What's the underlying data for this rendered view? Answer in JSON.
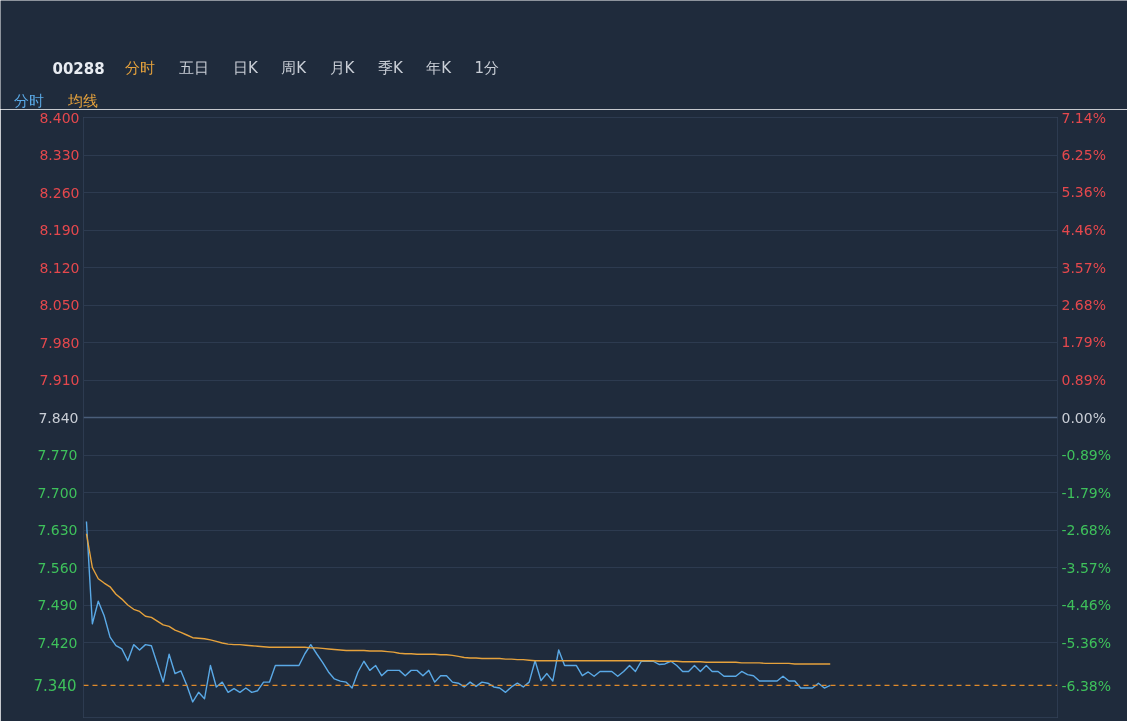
{
  "chart_data": {
    "type": "line",
    "title": "00288",
    "annotations": [
      "分时",
      "五日",
      "日K",
      "周K",
      "月K",
      "季K",
      "年K",
      "1分"
    ],
    "grid": "y",
    "tick_labels": "y",
    "categories": [
      null,
      null,
      null,
      null,
      null,
      null,
      null,
      null,
      null,
      null,
      null,
      null,
      null,
      null,
      null,
      null,
      null,
      null,
      null,
      null,
      null,
      null,
      null,
      null,
      null,
      null,
      null,
      null,
      null,
      null,
      null,
      null,
      null,
      null,
      null,
      null,
      null,
      null,
      null,
      null,
      null,
      null,
      null,
      null,
      null,
      null,
      null,
      null,
      null,
      null,
      null,
      null,
      null,
      null,
      null,
      null,
      null,
      null,
      null,
      null,
      null,
      null,
      null,
      null,
      null,
      null,
      null,
      null,
      null,
      null,
      null,
      null,
      null,
      null,
      null,
      null,
      null,
      null,
      null,
      null,
      null,
      null,
      null,
      null,
      null,
      null,
      null,
      null,
      null,
      null,
      null,
      null,
      null,
      null,
      null,
      null,
      null,
      null,
      null,
      null,
      null,
      null,
      null,
      null,
      null,
      null,
      null,
      null,
      null,
      null,
      null,
      null,
      null,
      null,
      null,
      null,
      null,
      null,
      null,
      null,
      null,
      null,
      null,
      null,
      null,
      null,
      null,
      null,
      null,
      null,
      null,
      null,
      null,
      null,
      null,
      null,
      null,
      null,
      null,
      null,
      null,
      null,
      null,
      null,
      null,
      null,
      null,
      null,
      null,
      null,
      null,
      null,
      null,
      null,
      null,
      null,
      null,
      null,
      null,
      null,
      null,
      null,
      null,
      null,
      null
    ],
    "ylim": [
      7.28,
      8.4
    ],
    "yticks": [
      {
        "value": 8.4,
        "label": "8.400"
      },
      {
        "value": 8.33,
        "label": "8.330"
      },
      {
        "value": 8.26,
        "label": "8.260"
      },
      {
        "value": 8.19,
        "label": "8.190"
      },
      {
        "value": 8.12,
        "label": "8.120"
      },
      {
        "value": 8.05,
        "label": "8.050"
      },
      {
        "value": 7.98,
        "label": "7.980"
      },
      {
        "value": 7.91,
        "label": "7.910"
      },
      {
        "value": 7.84,
        "label": "7.840"
      },
      {
        "value": 7.77,
        "label": "7.770"
      },
      {
        "value": 7.7,
        "label": "7.700"
      },
      {
        "value": 7.63,
        "label": "7.630"
      },
      {
        "value": 7.56,
        "label": "7.560"
      },
      {
        "value": 7.49,
        "label": "7.490"
      },
      {
        "value": 7.42,
        "label": "7.420"
      }
    ],
    "y2lim": [
      -7.14,
      7.14
    ],
    "y2ticks": [
      {
        "value": 7.14,
        "label": "7.14%"
      },
      {
        "value": 6.25,
        "label": "6.25%"
      },
      {
        "value": 5.36,
        "label": "5.36%"
      },
      {
        "value": 4.46,
        "label": "4.46%"
      },
      {
        "value": 3.57,
        "label": "3.57%"
      },
      {
        "value": 2.68,
        "label": "2.68%"
      },
      {
        "value": 1.79,
        "label": "1.79%"
      },
      {
        "value": 0.89,
        "label": "0.89%"
      },
      {
        "value": 0,
        "label": "0.00%"
      },
      {
        "value": -0.89,
        "label": "-0.89%"
      },
      {
        "value": -1.79,
        "label": "-1.79%"
      },
      {
        "value": -2.68,
        "label": "-2.68%"
      },
      {
        "value": -3.57,
        "label": "-3.57%"
      },
      {
        "value": -4.46,
        "label": "-4.46%"
      },
      {
        "value": -5.36,
        "label": "-5.36%"
      },
      {
        "value": -6.38,
        "label": "-6.38%"
      }
    ],
    "ref_lines": [
      {
        "axis": "y",
        "value": 7.84,
        "color": "#4a5e7a"
      },
      {
        "axis": "y",
        "value": 7.34,
        "label": "7.340",
        "color": "#e08a2a",
        "line_style": "dashed"
      }
    ],
    "series": [
      {
        "name": "分时",
        "color": "#5aa9e6",
        "values": [
          7.646,
          7.455,
          7.497,
          7.47,
          7.43,
          7.414,
          7.408,
          7.386,
          7.416,
          7.406,
          7.416,
          7.414,
          7.38,
          7.346,
          7.398,
          7.362,
          7.367,
          7.34,
          7.309,
          7.327,
          7.315,
          7.377,
          7.337,
          7.346,
          7.327,
          7.334,
          7.327,
          7.335,
          7.327,
          7.33,
          7.346,
          7.346,
          7.377,
          7.377,
          7.377,
          7.377,
          7.377,
          7.399,
          7.416,
          7.399,
          7.383,
          7.365,
          7.352,
          7.348,
          7.346,
          7.335,
          7.365,
          7.385,
          7.368,
          7.377,
          7.358,
          7.368,
          7.368,
          7.368,
          7.358,
          7.368,
          7.368,
          7.358,
          7.368,
          7.346,
          7.358,
          7.358,
          7.346,
          7.344,
          7.337,
          7.346,
          7.338,
          7.346,
          7.344,
          7.337,
          7.335,
          7.327,
          7.337,
          7.344,
          7.337,
          7.346,
          7.386,
          7.349,
          7.362,
          7.348,
          7.406,
          7.377,
          7.377,
          7.377,
          7.358,
          7.365,
          7.357,
          7.366,
          7.366,
          7.366,
          7.357,
          7.366,
          7.377,
          7.366,
          7.385,
          7.385,
          7.385,
          7.379,
          7.38,
          7.385,
          7.377,
          7.366,
          7.366,
          7.377,
          7.366,
          7.377,
          7.366,
          7.366,
          7.357,
          7.357,
          7.357,
          7.366,
          7.36,
          7.358,
          7.348,
          7.348,
          7.348,
          7.348,
          7.357,
          7.348,
          7.348,
          7.335,
          7.335,
          7.335,
          7.344,
          7.335,
          7.34,
          null,
          null,
          null,
          null,
          null,
          null,
          null,
          null,
          null,
          null,
          null,
          null,
          null,
          null,
          null,
          null,
          null,
          null,
          null,
          null,
          null,
          null,
          null,
          null,
          null,
          null,
          null,
          null,
          null,
          null,
          null,
          null,
          null,
          null,
          null,
          null,
          null,
          null
        ]
      },
      {
        "name": "均线",
        "color": "#e6a23c",
        "values": [
          7.623,
          7.56,
          7.539,
          7.531,
          7.524,
          7.51,
          7.501,
          7.49,
          7.482,
          7.478,
          7.469,
          7.467,
          7.46,
          7.453,
          7.45,
          7.443,
          7.439,
          7.434,
          7.429,
          7.428,
          7.427,
          7.425,
          7.422,
          7.419,
          7.417,
          7.416,
          7.416,
          7.415,
          7.414,
          7.413,
          7.412,
          7.411,
          7.411,
          7.411,
          7.411,
          7.411,
          7.411,
          7.411,
          7.41,
          7.41,
          7.409,
          7.408,
          7.407,
          7.406,
          7.405,
          7.405,
          7.405,
          7.405,
          7.404,
          7.404,
          7.404,
          7.403,
          7.402,
          7.4,
          7.399,
          7.399,
          7.398,
          7.398,
          7.398,
          7.398,
          7.397,
          7.397,
          7.396,
          7.394,
          7.392,
          7.391,
          7.391,
          7.39,
          7.39,
          7.39,
          7.39,
          7.389,
          7.389,
          7.388,
          7.388,
          7.387,
          7.386,
          7.386,
          7.386,
          7.386,
          7.386,
          7.386,
          7.386,
          7.386,
          7.386,
          7.386,
          7.386,
          7.386,
          7.386,
          7.386,
          7.386,
          7.386,
          7.386,
          7.386,
          7.386,
          7.386,
          7.386,
          7.385,
          7.385,
          7.385,
          7.385,
          7.384,
          7.384,
          7.384,
          7.384,
          7.383,
          7.383,
          7.383,
          7.383,
          7.383,
          7.383,
          7.382,
          7.382,
          7.382,
          7.382,
          7.381,
          7.381,
          7.381,
          7.381,
          7.381,
          7.38,
          7.38,
          7.38,
          7.38,
          7.38,
          7.38,
          7.38,
          null,
          null,
          null,
          null,
          null,
          null,
          null,
          null,
          null,
          null,
          null,
          null,
          null,
          null,
          null,
          null,
          null,
          null,
          null,
          null,
          null,
          null,
          null,
          null,
          null,
          null,
          null,
          null,
          null,
          null,
          null,
          null,
          null,
          null,
          null,
          null,
          null,
          null
        ]
      }
    ]
  }
}
